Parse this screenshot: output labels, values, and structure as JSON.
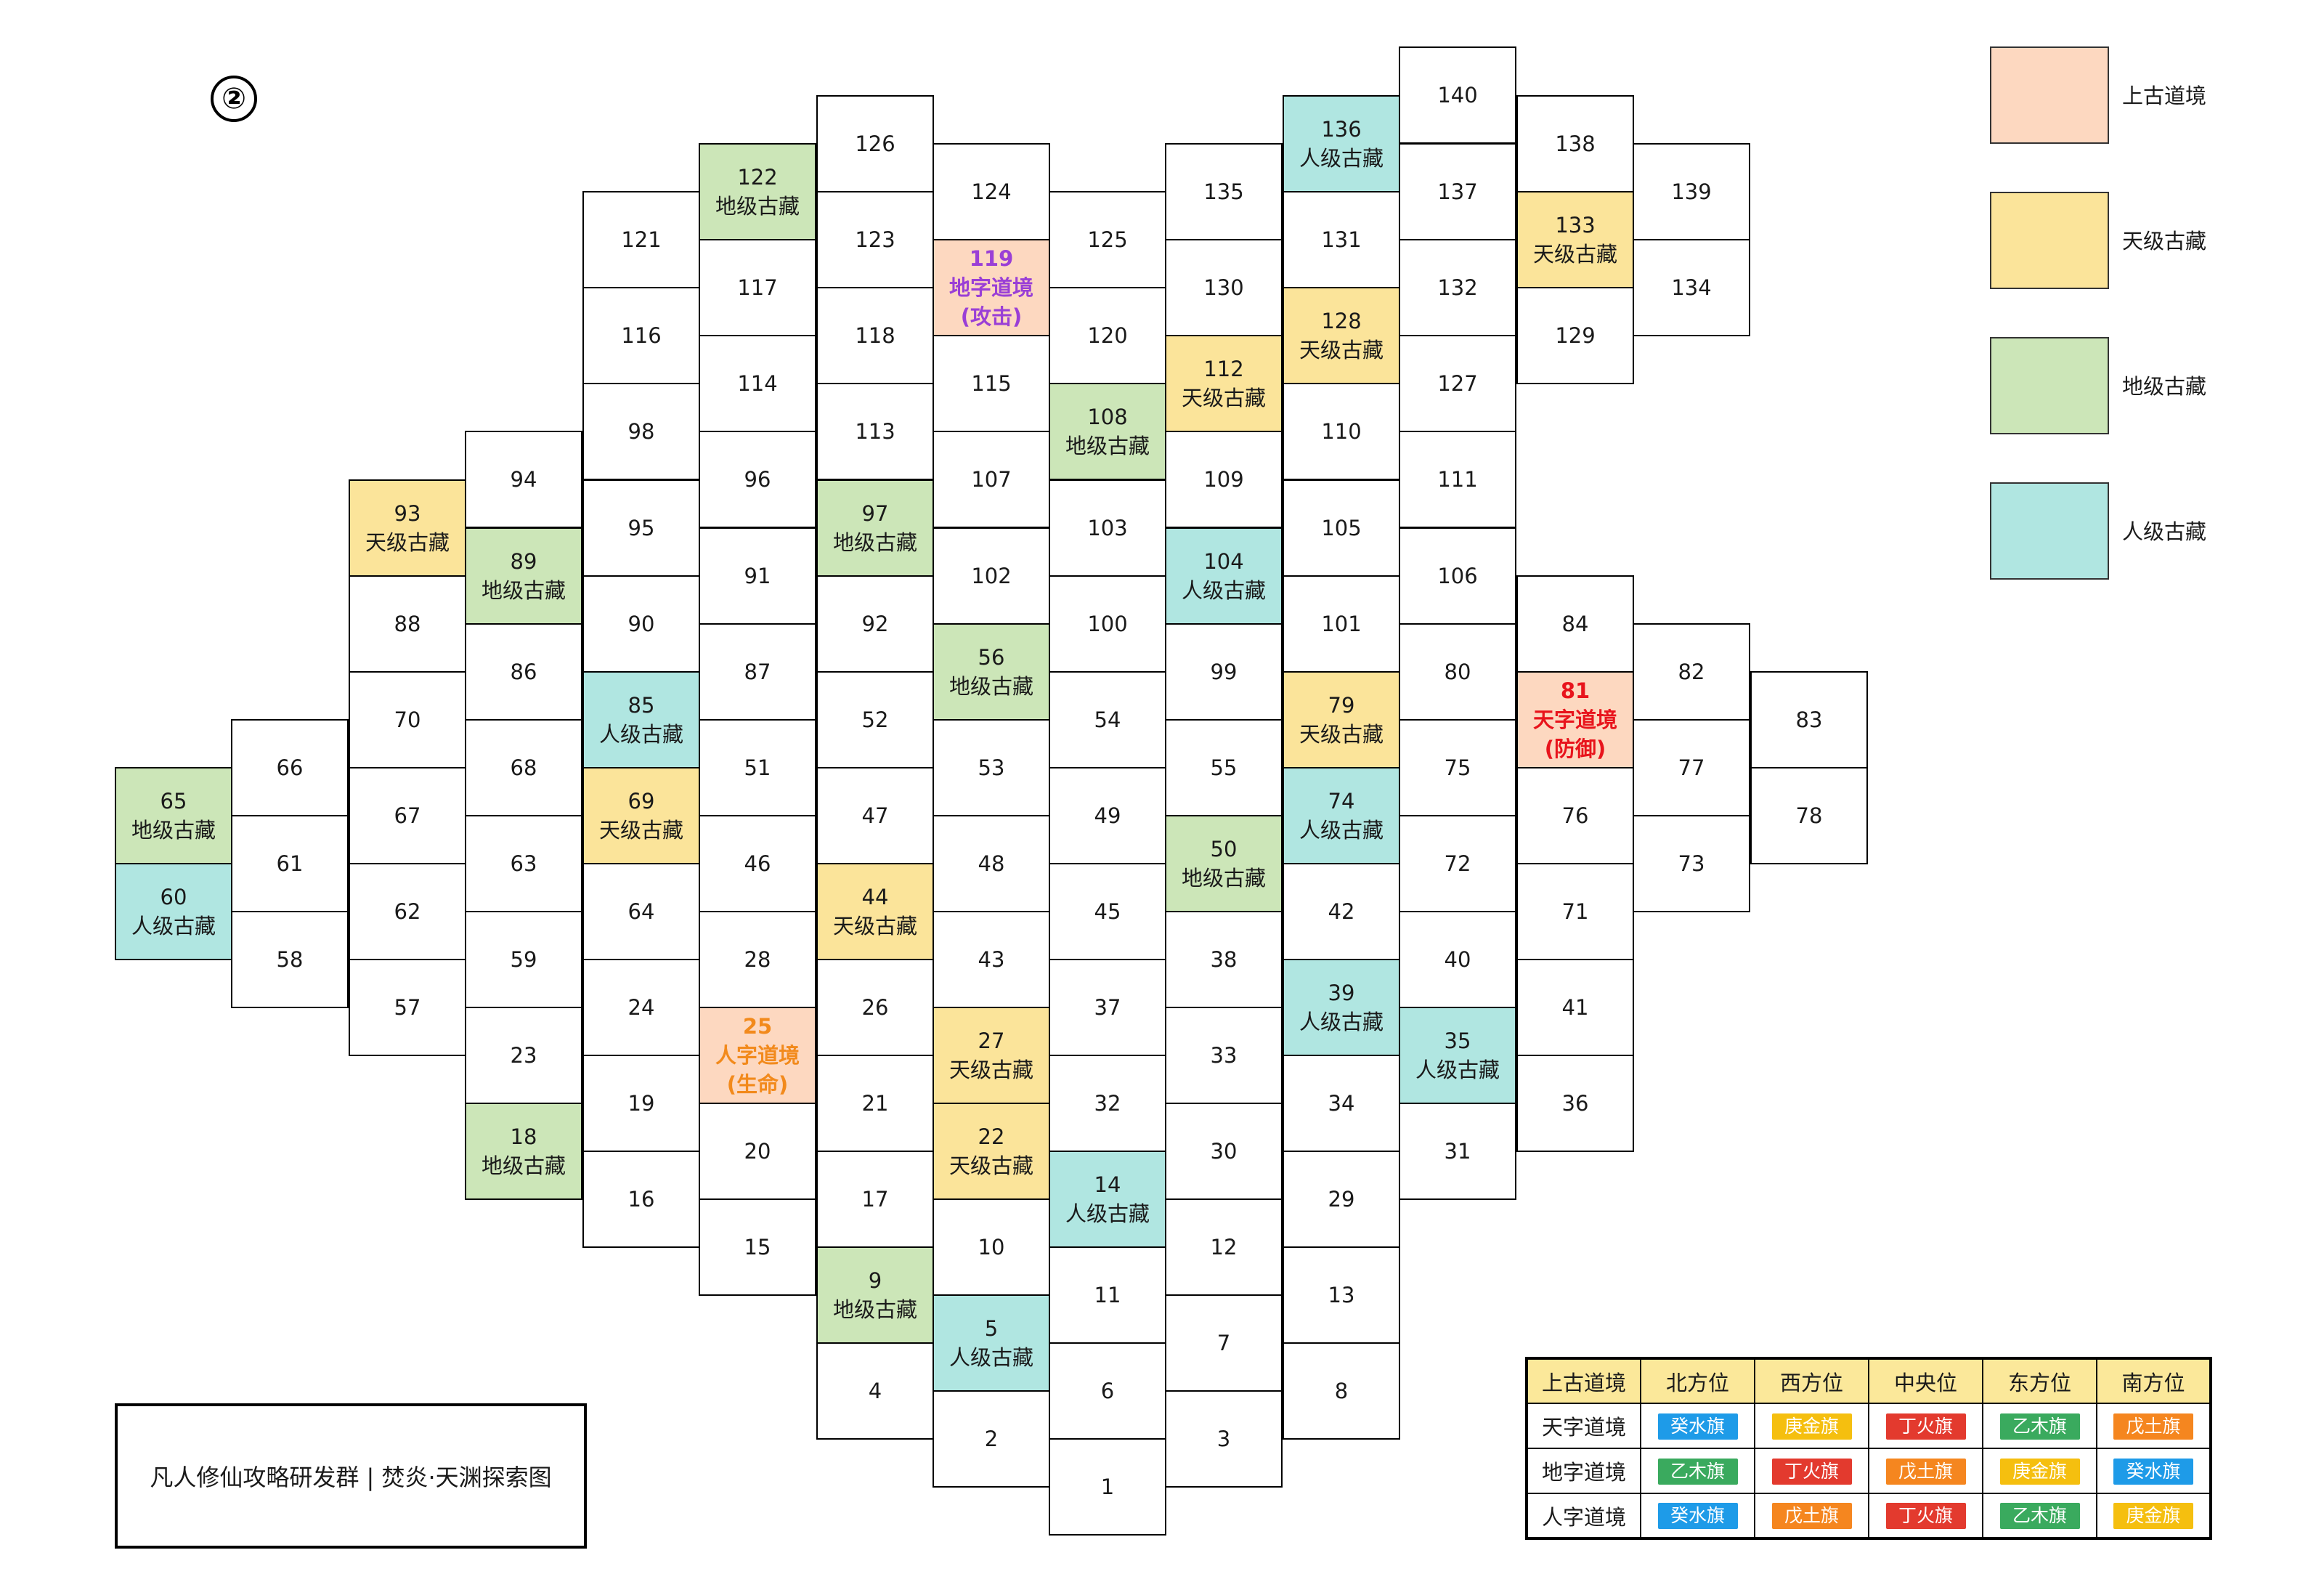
{
  "marker": "②",
  "colors": {
    "ancient_realm": "#fdd8c0",
    "heaven_treasure": "#fbe49a",
    "earth_treasure": "#cce6b8",
    "human_treasure": "#b0e6e1",
    "plain": "#ffffff",
    "text_attack": "#9a3fd6",
    "text_defense": "#e8141c",
    "text_life": "#f28a1c"
  },
  "legend": [
    {
      "label": "上古道境",
      "color": "#fdd8c0"
    },
    {
      "label": "天级古藏",
      "color": "#fbe49a"
    },
    {
      "label": "地级古藏",
      "color": "#cce6b8"
    },
    {
      "label": "人级古藏",
      "color": "#b0e6e1"
    }
  ],
  "footer": "凡人修仙攻略研发群 | 焚炎·天渊探索图",
  "flag_table": {
    "headers": [
      "上古道境",
      "北方位",
      "西方位",
      "中央位",
      "东方位",
      "南方位"
    ],
    "rows": [
      {
        "label": "天字道境",
        "flags": [
          {
            "text": "癸水旗",
            "color": "#1e9be8"
          },
          {
            "text": "庚金旗",
            "color": "#f5bf0f"
          },
          {
            "text": "丁火旗",
            "color": "#e33a2e"
          },
          {
            "text": "乙木旗",
            "color": "#3aaa5e"
          },
          {
            "text": "戊土旗",
            "color": "#f5861f"
          }
        ]
      },
      {
        "label": "地字道境",
        "flags": [
          {
            "text": "乙木旗",
            "color": "#3aaa5e"
          },
          {
            "text": "丁火旗",
            "color": "#e33a2e"
          },
          {
            "text": "戊土旗",
            "color": "#f5861f"
          },
          {
            "text": "庚金旗",
            "color": "#f5bf0f"
          },
          {
            "text": "癸水旗",
            "color": "#1e9be8"
          }
        ]
      },
      {
        "label": "人字道境",
        "flags": [
          {
            "text": "癸水旗",
            "color": "#1e9be8"
          },
          {
            "text": "戊土旗",
            "color": "#f5861f"
          },
          {
            "text": "丁火旗",
            "color": "#e33a2e"
          },
          {
            "text": "乙木旗",
            "color": "#3aaa5e"
          },
          {
            "text": "庚金旗",
            "color": "#f5bf0f"
          }
        ]
      }
    ]
  },
  "cells": [
    {
      "n": "140"
    },
    {
      "n": "136",
      "t": "人级古藏"
    },
    {
      "n": "138"
    },
    {
      "n": "126"
    },
    {
      "n": "137"
    },
    {
      "n": "139"
    },
    {
      "n": "122",
      "t": "地级古藏"
    },
    {
      "n": "124"
    },
    {
      "n": "135"
    },
    {
      "n": "121"
    },
    {
      "n": "123"
    },
    {
      "n": "125"
    },
    {
      "n": "131"
    },
    {
      "n": "133",
      "t": "天级古藏"
    },
    {
      "n": "119",
      "t": "地字道境",
      "s": "(攻击)"
    },
    {
      "n": "117"
    },
    {
      "n": "130"
    },
    {
      "n": "132"
    },
    {
      "n": "134"
    },
    {
      "n": "116"
    },
    {
      "n": "118"
    },
    {
      "n": "120"
    },
    {
      "n": "128",
      "t": "天级古藏"
    },
    {
      "n": "129"
    },
    {
      "n": "112",
      "t": "天级古藏"
    },
    {
      "n": "114"
    },
    {
      "n": "115"
    },
    {
      "n": "127"
    },
    {
      "n": "98"
    },
    {
      "n": "113"
    },
    {
      "n": "108",
      "t": "地级古藏"
    },
    {
      "n": "110"
    },
    {
      "n": "94"
    },
    {
      "n": "96"
    },
    {
      "n": "107"
    },
    {
      "n": "109"
    },
    {
      "n": "111"
    },
    {
      "n": "93",
      "t": "天级古藏"
    },
    {
      "n": "95"
    },
    {
      "n": "97",
      "t": "地级古藏"
    },
    {
      "n": "103"
    },
    {
      "n": "105"
    },
    {
      "n": "89",
      "t": "地级古藏"
    },
    {
      "n": "91"
    },
    {
      "n": "102"
    },
    {
      "n": "104",
      "t": "人级古藏"
    },
    {
      "n": "106"
    },
    {
      "n": "88"
    },
    {
      "n": "90"
    },
    {
      "n": "92"
    },
    {
      "n": "100"
    },
    {
      "n": "101"
    },
    {
      "n": "84"
    },
    {
      "n": "86"
    },
    {
      "n": "87"
    },
    {
      "n": "56",
      "t": "地级古藏"
    },
    {
      "n": "99"
    },
    {
      "n": "80"
    },
    {
      "n": "82"
    },
    {
      "n": "70"
    },
    {
      "n": "85",
      "t": "人级古藏"
    },
    {
      "n": "52"
    },
    {
      "n": "54"
    },
    {
      "n": "79",
      "t": "天级古藏"
    },
    {
      "n": "81",
      "t": "天字道境",
      "s": "(防御)"
    },
    {
      "n": "83"
    },
    {
      "n": "66"
    },
    {
      "n": "68"
    },
    {
      "n": "51"
    },
    {
      "n": "53"
    },
    {
      "n": "55"
    },
    {
      "n": "75"
    },
    {
      "n": "77"
    },
    {
      "n": "65",
      "t": "地级古藏"
    },
    {
      "n": "67"
    },
    {
      "n": "69",
      "t": "天级古藏"
    },
    {
      "n": "47"
    },
    {
      "n": "49"
    },
    {
      "n": "74",
      "t": "人级古藏"
    },
    {
      "n": "76"
    },
    {
      "n": "78"
    },
    {
      "n": "61"
    },
    {
      "n": "63"
    },
    {
      "n": "46"
    },
    {
      "n": "48"
    },
    {
      "n": "50",
      "t": "地级古藏"
    },
    {
      "n": "72"
    },
    {
      "n": "73"
    },
    {
      "n": "60",
      "t": "人级古藏"
    },
    {
      "n": "62"
    },
    {
      "n": "64"
    },
    {
      "n": "44",
      "t": "天级古藏"
    },
    {
      "n": "45"
    },
    {
      "n": "42"
    },
    {
      "n": "71"
    },
    {
      "n": "58"
    },
    {
      "n": "59"
    },
    {
      "n": "28"
    },
    {
      "n": "43"
    },
    {
      "n": "38"
    },
    {
      "n": "40"
    },
    {
      "n": "57"
    },
    {
      "n": "24"
    },
    {
      "n": "26"
    },
    {
      "n": "37"
    },
    {
      "n": "39",
      "t": "人级古藏"
    },
    {
      "n": "41"
    },
    {
      "n": "23"
    },
    {
      "n": "25",
      "t": "人字道境",
      "s": "(生命)"
    },
    {
      "n": "27",
      "t": "天级古藏"
    },
    {
      "n": "33"
    },
    {
      "n": "35",
      "t": "人级古藏"
    },
    {
      "n": "19"
    },
    {
      "n": "21"
    },
    {
      "n": "32"
    },
    {
      "n": "34"
    },
    {
      "n": "36"
    },
    {
      "n": "18",
      "t": "地级古藏"
    },
    {
      "n": "20"
    },
    {
      "n": "22",
      "t": "天级古藏"
    },
    {
      "n": "30"
    },
    {
      "n": "31"
    },
    {
      "n": "16"
    },
    {
      "n": "17"
    },
    {
      "n": "14",
      "t": "人级古藏"
    },
    {
      "n": "29"
    },
    {
      "n": "15"
    },
    {
      "n": "10"
    },
    {
      "n": "12"
    },
    {
      "n": "9",
      "t": "地级古藏"
    },
    {
      "n": "11"
    },
    {
      "n": "13"
    },
    {
      "n": "5",
      "t": "人级古藏"
    },
    {
      "n": "7"
    },
    {
      "n": "4"
    },
    {
      "n": "6"
    },
    {
      "n": "8"
    },
    {
      "n": "2"
    },
    {
      "n": "3"
    },
    {
      "n": "1"
    }
  ]
}
